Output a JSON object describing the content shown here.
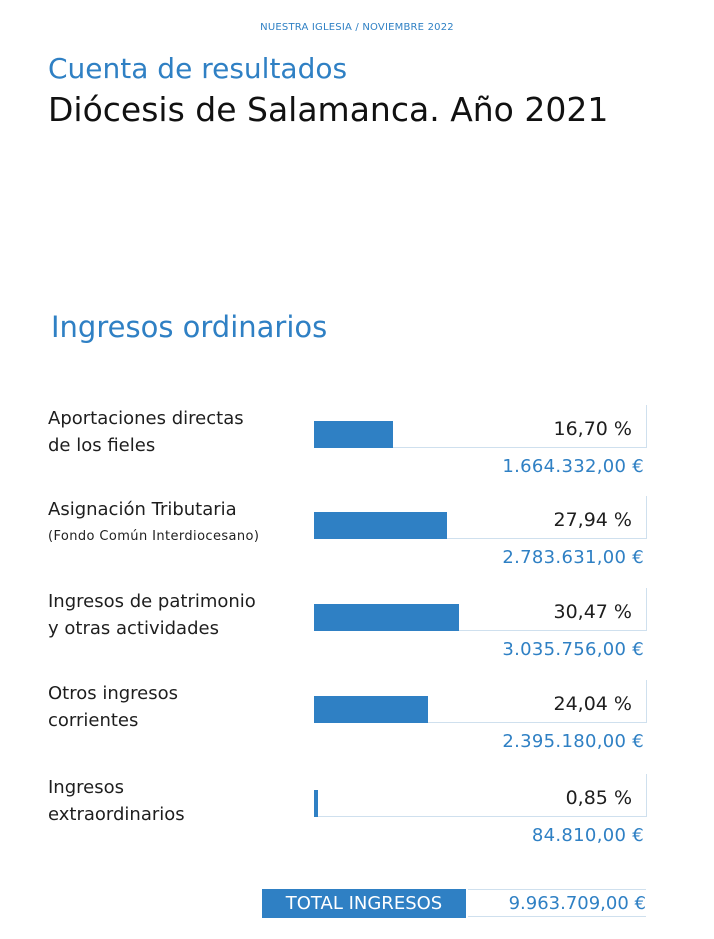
{
  "header": "NUESTRA IGLESIA / NOVIEMBRE 2022",
  "title_line1": "Cuenta de resultados",
  "title_line2": "Diócesis de Salamanca. Año 2021",
  "section_title": "Ingresos ordinarios",
  "colors": {
    "accent": "#2f80c4",
    "text": "#1e1e1e"
  },
  "rows": [
    {
      "line1": "Aportaciones directas",
      "line2": "de los fieles",
      "percent_label": "16,70 %",
      "percent": 16.7,
      "amount": "1.664.332,00 €"
    },
    {
      "line1": "Asignación Tributaria",
      "line2": "(Fondo Común Interdiocesano)",
      "percent_label": "27,94 %",
      "percent": 27.94,
      "amount": "2.783.631,00 €"
    },
    {
      "line1": "Ingresos de patrimonio",
      "line2": "y otras actividades",
      "percent_label": "30,47 %",
      "percent": 30.47,
      "amount": "3.035.756,00 €"
    },
    {
      "line1": "Otros ingresos",
      "line2": "corrientes",
      "percent_label": "24,04 %",
      "percent": 24.04,
      "amount": "2.395.180,00 €"
    },
    {
      "line1": "Ingresos",
      "line2": "extraordinarios",
      "percent_label": "0,85 %",
      "percent": 0.85,
      "amount": "84.810,00 €"
    }
  ],
  "total": {
    "label": "TOTAL INGRESOS",
    "value": "9.963.709,00 €"
  }
}
